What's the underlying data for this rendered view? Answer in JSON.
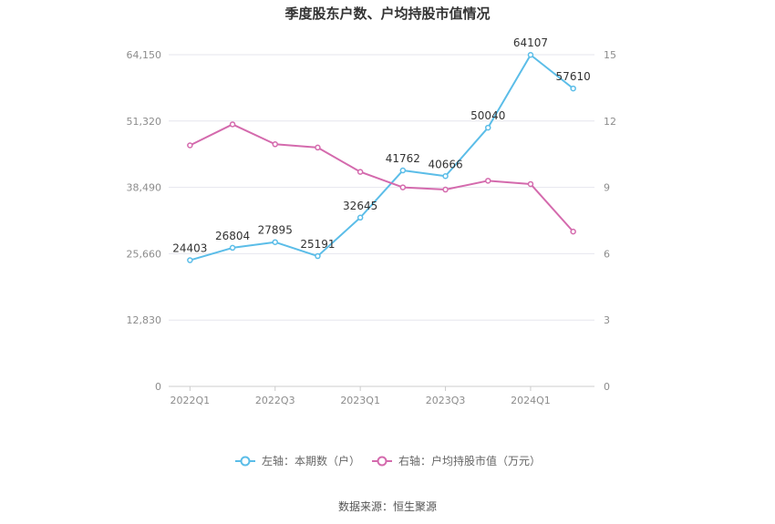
{
  "chart_data": {
    "type": "line",
    "title": "季度股东户数、户均持股市值情况",
    "x": [
      "2022Q1",
      "2022Q2",
      "2022Q3",
      "2022Q4",
      "2023Q1",
      "2023Q2",
      "2023Q3",
      "2023Q4",
      "2024Q1",
      "2024Q2"
    ],
    "x_tick_labels": [
      "2022Q1",
      "2022Q3",
      "2023Q1",
      "2023Q3",
      "2024Q1"
    ],
    "left_axis": {
      "ylim": [
        0,
        64150
      ],
      "ticks": [
        "0",
        "12,830",
        "25,660",
        "38,490",
        "51,320",
        "64,150"
      ],
      "tick_values": [
        0,
        12830,
        25660,
        38490,
        51320,
        64150
      ]
    },
    "right_axis": {
      "ylim": [
        0,
        15
      ],
      "ticks": [
        "0",
        "3",
        "6",
        "9",
        "12",
        "15"
      ],
      "tick_values": [
        0,
        3,
        6,
        9,
        12,
        15
      ]
    },
    "series": [
      {
        "name": "左轴：本期数（户）",
        "axis": "left",
        "color": "#5bbde8",
        "values": [
          24403,
          26804,
          27895,
          25191,
          32645,
          41762,
          40666,
          50040,
          64107,
          57610
        ],
        "labels": [
          "24403",
          "26804",
          "27895",
          "25191",
          "32645",
          "41762",
          "40666",
          "50040",
          "64107",
          "57610"
        ]
      },
      {
        "name": "右轴：户均持股市值（万元）",
        "axis": "right",
        "color": "#d46aad",
        "values": [
          10.9,
          11.85,
          10.95,
          10.8,
          9.7,
          9.0,
          8.9,
          9.3,
          9.15,
          7.0
        ]
      }
    ],
    "grid": true,
    "legend_position": "bottom"
  },
  "source_text": "数据来源：恒生聚源"
}
